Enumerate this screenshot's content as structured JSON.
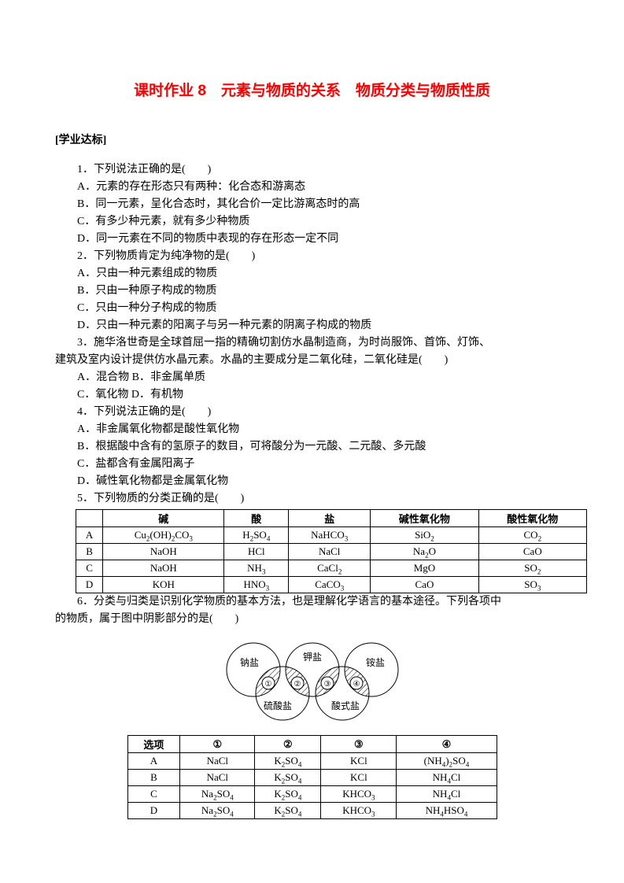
{
  "title": "课时作业 8　元素与物质的关系　物质分类与物质性质",
  "subtitle": "[学业达标]",
  "q1": {
    "stem": "1．下列说法正确的是(　　)",
    "a": "A．元素的存在形态只有两种：化合态和游离态",
    "b": "B．同一元素，呈化合态时，其化合价一定比游离态时的高",
    "c": "C．有多少种元素，就有多少种物质",
    "d": "D．同一元素在不同的物质中表现的存在形态一定不同"
  },
  "q2": {
    "stem": "2．下列物质肯定为纯净物的是(　　)",
    "a": "A．只由一种元素组成的物质",
    "b": "B．只由一种原子构成的物质",
    "c": "C．只由一种分子构成的物质",
    "d": "D．只由一种元素的阳离子与另一种元素的阴离子构成的物质"
  },
  "q3": {
    "line1": "3．施华洛世奇是全球首屈一指的精确切割仿水晶制造商，为时尚服饰、首饰、灯饰、",
    "line2": "建筑及室内设计提供仿水晶元素。水晶的主要成分是二氧化硅，二氧化硅是(　　)",
    "a": "A．混合物 B．非金属单质",
    "c": "C．氧化物 D．有机物"
  },
  "q4": {
    "stem": "4．下列说法正确的是(　　)",
    "a": "A．非金属氧化物都是酸性氧化物",
    "b": "B．根据酸中含有的氢原子的数目，可将酸分为一元酸、二元酸、多元酸",
    "c": "C．盐都含有金属阳离子",
    "d": "D．碱性氧化物都是金属氧化物"
  },
  "q5": {
    "stem": "5．下列物质的分类正确的是(　　)"
  },
  "table1": {
    "headers": [
      "",
      "碱",
      "酸",
      "盐",
      "碱性氧化物",
      "酸性氧化物"
    ],
    "rows": [
      [
        "A",
        "Cu<sub>2</sub>(OH)<sub>2</sub>CO<sub>3</sub>",
        "H<sub>2</sub>SO<sub>4</sub>",
        "NaHCO<sub>3</sub>",
        "SiO<sub>2</sub>",
        "CO<sub>2</sub>"
      ],
      [
        "B",
        "NaOH",
        "HCl",
        "NaCl",
        "Na<sub>2</sub>O",
        "CaO"
      ],
      [
        "C",
        "NaOH",
        "NH<sub>3</sub>",
        "CaCl<sub>2</sub>",
        "MgO",
        "SO<sub>2</sub>"
      ],
      [
        "D",
        "KOH",
        "HNO<sub>3</sub>",
        "CaCO<sub>3</sub>",
        "CaO",
        "SO<sub>3</sub>"
      ]
    ]
  },
  "q6": {
    "line1": "6．分类与归类是识别化学物质的基本方法，也是理解化学语言的基本途径。下列各项中",
    "line2": "的物质，属于图中阴影部分的是(　　)"
  },
  "venn": {
    "stroke": "#000000",
    "fill": "#ffffff",
    "hatch": "#000000",
    "labels": {
      "top_left": "钠盐",
      "top_center": "钾盐",
      "top_right": "铵盐",
      "bottom_left": "硫酸盐",
      "bottom_right": "酸式盐",
      "n1": "①",
      "n2": "②",
      "n3": "③",
      "n4": "④"
    }
  },
  "table2": {
    "headers": [
      "选项",
      "①",
      "②",
      "③",
      "④"
    ],
    "rows": [
      [
        "A",
        "NaCl",
        "K<sub>2</sub>SO<sub>4</sub>",
        "KCl",
        "(NH<sub>4</sub>)<sub>2</sub>SO<sub>4</sub>"
      ],
      [
        "B",
        "NaCl",
        "K<sub>2</sub>SO<sub>4</sub>",
        "KCl",
        "NH<sub>4</sub>Cl"
      ],
      [
        "C",
        "Na<sub>2</sub>SO<sub>4</sub>",
        "K<sub>2</sub>SO<sub>4</sub>",
        "KHCO<sub>3</sub>",
        "NH<sub>4</sub>Cl"
      ],
      [
        "D",
        "Na<sub>2</sub>SO<sub>4</sub>",
        "K<sub>2</sub>SO<sub>4</sub>",
        "KHCO<sub>3</sub>",
        "NH<sub>4</sub>HSO<sub>4</sub>"
      ]
    ]
  }
}
